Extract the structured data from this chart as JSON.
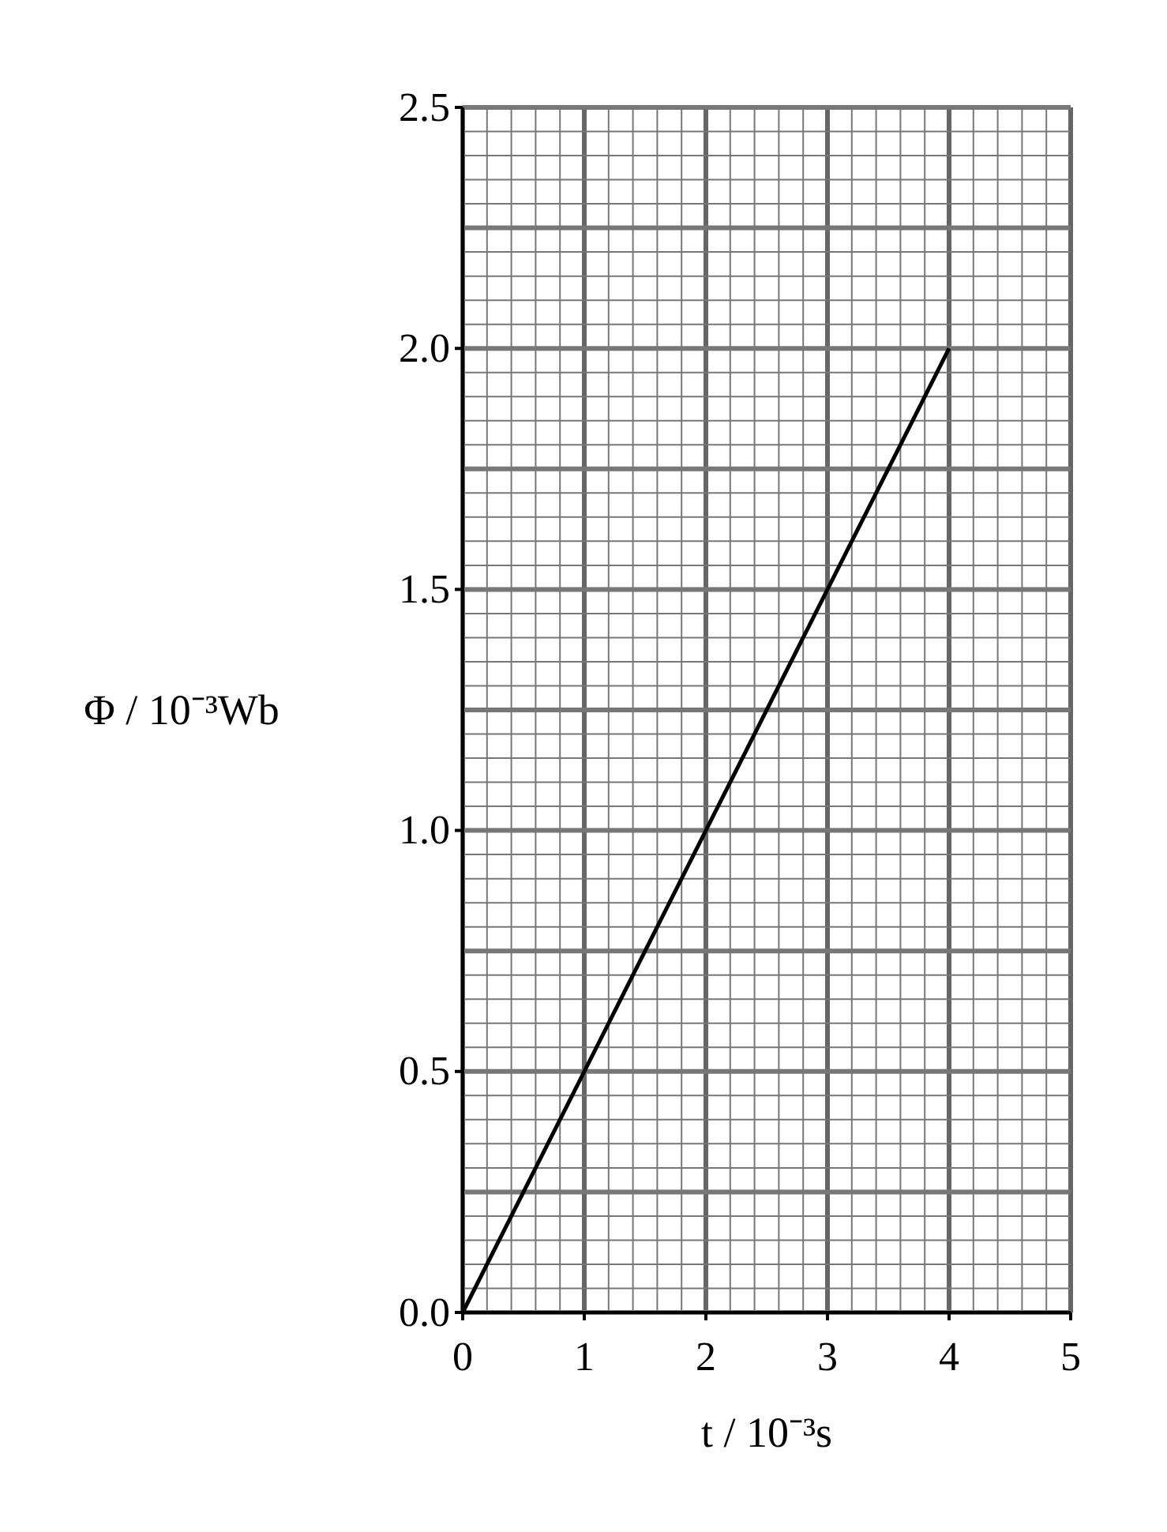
{
  "chart_data": {
    "type": "line",
    "xlabel": "t / 10⁻³s",
    "ylabel": "Φ / 10⁻³Wb",
    "x": [
      0,
      4
    ],
    "series": [
      {
        "color": "#000000",
        "values": [
          0,
          2
        ]
      }
    ],
    "xlim": [
      0,
      5
    ],
    "xticks": [
      0,
      1,
      2,
      3,
      4,
      5
    ],
    "ylim": [
      0,
      2.5
    ],
    "yticks": [
      {
        "value": 0,
        "label": "0.0"
      },
      {
        "value": 0.5,
        "label": "0.5"
      },
      {
        "value": 1,
        "label": "1.0"
      },
      {
        "value": 1.5,
        "label": "1.5"
      },
      {
        "value": 2,
        "label": "2.0"
      },
      {
        "value": 2.5,
        "label": "2.5"
      }
    ],
    "grid": true,
    "marker": "none",
    "line_style": "solid"
  }
}
